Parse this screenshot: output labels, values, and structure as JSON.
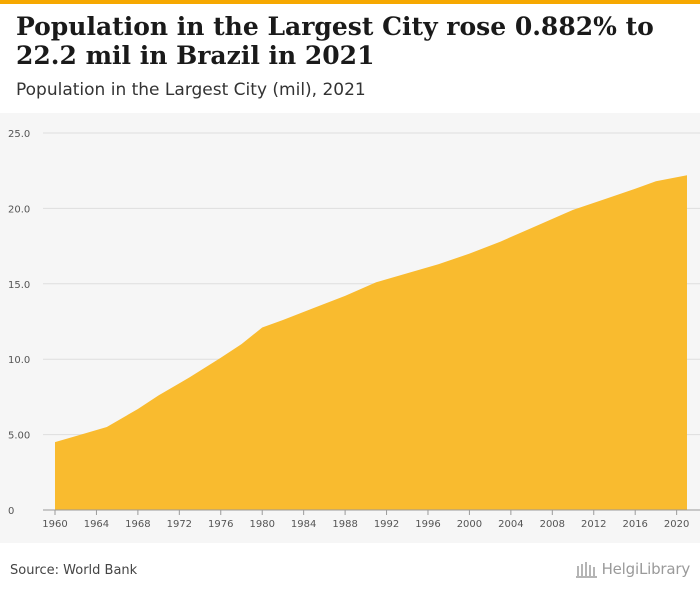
{
  "header": {
    "title": "Population in the Largest City rose 0.882% to 22.2 mil in Brazil in 2021",
    "subtitle": "Population in the Largest City (mil), 2021"
  },
  "footer": {
    "source": "Source: World Bank",
    "logo_text": "HelgiLibrary"
  },
  "colors": {
    "accent": "#f6a800",
    "area_fill": "#f9bb2f",
    "plot_background": "#f6f6f6",
    "gridline": "#dedede"
  },
  "chart_data": {
    "type": "area",
    "title": "Population in the Largest City (mil), 2021",
    "xlabel": "",
    "ylabel": "",
    "ylim": [
      0,
      25
    ],
    "yticks": [
      0,
      5,
      10,
      15,
      20,
      25
    ],
    "ytick_labels": [
      "0",
      "5.00",
      "10.0",
      "15.0",
      "20.0",
      "25.0"
    ],
    "xticks": [
      1960,
      1964,
      1968,
      1972,
      1976,
      1980,
      1984,
      1988,
      1992,
      1996,
      2000,
      2004,
      2008,
      2012,
      2016,
      2020
    ],
    "xlim": [
      1960,
      2021
    ],
    "grid": true,
    "x": [
      1960,
      1962,
      1965,
      1968,
      1970,
      1973,
      1976,
      1978,
      1980,
      1982,
      1985,
      1988,
      1991,
      1994,
      1997,
      2000,
      2003,
      2006,
      2009,
      2010,
      2013,
      2016,
      2018,
      2021
    ],
    "values": [
      4.5,
      4.9,
      5.5,
      6.7,
      7.6,
      8.8,
      10.1,
      11.0,
      12.1,
      12.6,
      13.4,
      14.2,
      15.1,
      15.7,
      16.3,
      17.0,
      17.8,
      18.7,
      19.6,
      19.9,
      20.6,
      21.3,
      21.8,
      22.2
    ]
  }
}
